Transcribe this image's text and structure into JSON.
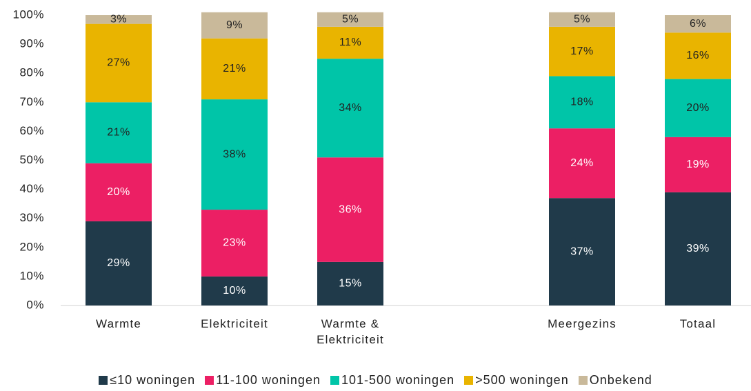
{
  "chart_data": {
    "type": "stacked_bar",
    "categories": [
      "Warmte",
      "Elektriciteit",
      "Warmte & Elektriciteit",
      null,
      "Meergezins",
      "Totaal"
    ],
    "series": [
      {
        "name": "≤10 woningen",
        "color": "#203a4a",
        "label_color": "#ffffff",
        "values": [
          29,
          10,
          15,
          null,
          37,
          39
        ],
        "value_labels": [
          "29%",
          "10%",
          "15%",
          null,
          "37%",
          "39%"
        ]
      },
      {
        "name": "11-100 woningen",
        "color": "#ec1f64",
        "label_color": "#ffffff",
        "values": [
          20,
          23,
          36,
          null,
          24,
          19
        ],
        "value_labels": [
          "20%",
          "23%",
          "36%",
          null,
          "24%",
          "19%"
        ]
      },
      {
        "name": "101-500 woningen",
        "color": "#00c5a8",
        "label_color": "#222222",
        "values": [
          21,
          38,
          34,
          null,
          18,
          20
        ],
        "value_labels": [
          "21%",
          "38%",
          "34%",
          null,
          "18%",
          "20%"
        ]
      },
      {
        "name": ">500 woningen",
        "color": "#e9b400",
        "label_color": "#222222",
        "values": [
          27,
          21,
          11,
          null,
          17,
          16
        ],
        "value_labels": [
          "27%",
          "21%",
          "11%",
          null,
          "17%",
          "16%"
        ]
      },
      {
        "name": "Onbekend",
        "color": "#c9b99a",
        "label_color": "#222222",
        "values": [
          3,
          9,
          5,
          null,
          5,
          6
        ],
        "value_labels": [
          "3%",
          "9%",
          "5%",
          null,
          "5%",
          "6%"
        ]
      }
    ],
    "ylim": [
      0,
      100
    ],
    "yticks": [
      {
        "value": 0,
        "label": "0%"
      },
      {
        "value": 10,
        "label": "10%"
      },
      {
        "value": 20,
        "label": "20%"
      },
      {
        "value": 30,
        "label": "30%"
      },
      {
        "value": 40,
        "label": "40%"
      },
      {
        "value": 50,
        "label": "50%"
      },
      {
        "value": 60,
        "label": "60%"
      },
      {
        "value": 70,
        "label": "70%"
      },
      {
        "value": 80,
        "label": "80%"
      },
      {
        "value": 90,
        "label": "90%"
      },
      {
        "value": 100,
        "label": "100%"
      }
    ],
    "legend": "bottom"
  }
}
